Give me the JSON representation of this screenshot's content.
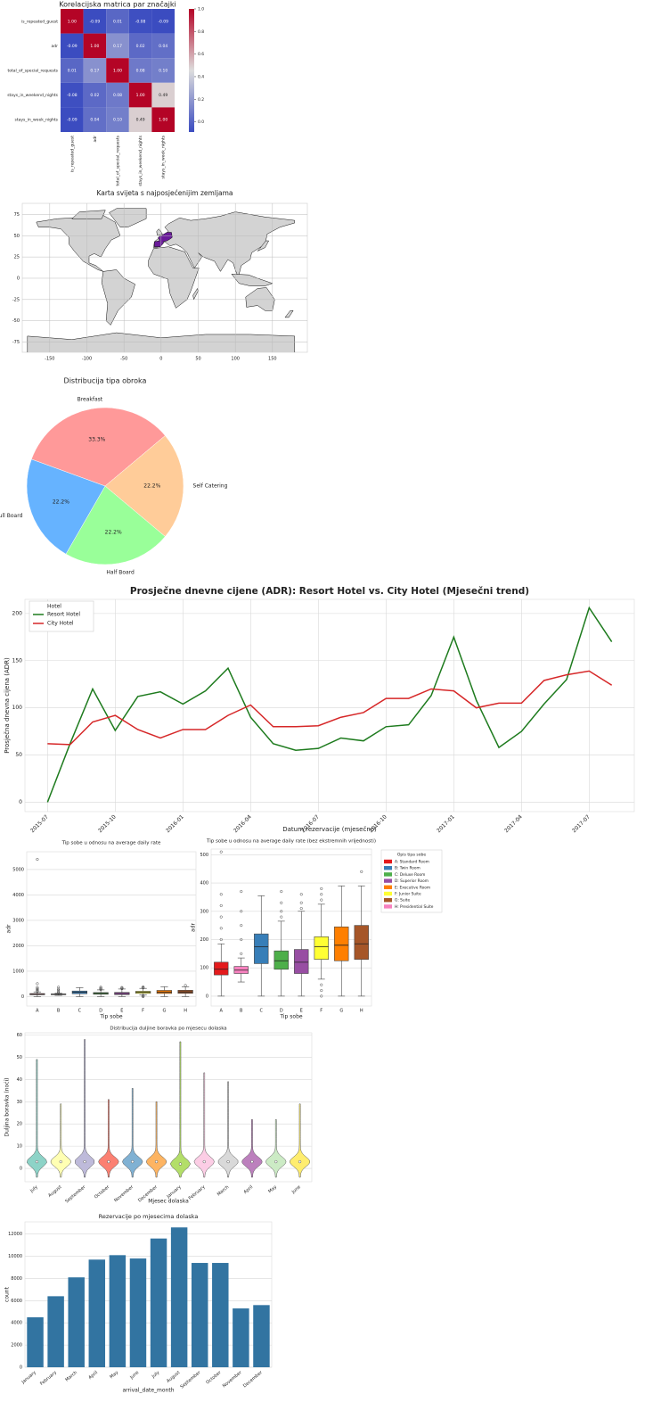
{
  "chart_data": [
    {
      "type": "heatmap",
      "title": "Korelacijska matrica par značajki",
      "x_labels": [
        "is_repeated_guest",
        "adr",
        "total_of_special_requests",
        "stays_in_weekend_nights",
        "stays_in_week_nights"
      ],
      "y_labels": [
        "is_repeated_guest",
        "adr",
        "total_of_special_requests",
        "stays_in_weekend_nights",
        "stays_in_week_nights"
      ],
      "values": [
        [
          1,
          -0.09,
          0.01,
          -0.08,
          -0.09
        ],
        [
          -0.09,
          1,
          0.17,
          0.02,
          0.04
        ],
        [
          0.01,
          0.17,
          1,
          0.08,
          0.1
        ],
        [
          -0.08,
          0.02,
          0.08,
          1,
          0.49
        ],
        [
          -0.09,
          0.04,
          0.1,
          0.49,
          1
        ]
      ],
      "value_labels": [
        [
          "1.00",
          "-0.09",
          "0.01",
          "-0.08",
          "-0.09"
        ],
        [
          "-0.09",
          "1.00",
          "0.17",
          "0.02",
          "0.04"
        ],
        [
          "0.01",
          "0.17",
          "1.00",
          "0.08",
          "0.10"
        ],
        [
          "-0.08",
          "0.02",
          "0.08",
          "1.00",
          "0.49"
        ],
        [
          "-0.09",
          "0.04",
          "0.10",
          "0.49",
          "1.00"
        ]
      ],
      "clim": [
        -0.09,
        1
      ],
      "cticks": [
        {
          "value": 0,
          "label": "0.0"
        },
        0.2,
        0.4,
        0.6,
        0.8,
        {
          "value": 1,
          "label": "1.0"
        }
      ]
    },
    {
      "type": "map",
      "title": "Karta svijeta s najposjećenijim zemljama",
      "xlim": [
        -187,
        197
      ],
      "ylim": [
        -87,
        88
      ],
      "xticks": [
        -150,
        -100,
        -50,
        0,
        50,
        100,
        150
      ],
      "yticks": [
        -75,
        -50,
        -25,
        0,
        25,
        50,
        75
      ],
      "grid": true
    },
    {
      "type": "pie",
      "title": "Distribucija tipa obroka",
      "categories": [
        "Breakfast",
        "Self Catering",
        "Half Board",
        "Full Board"
      ],
      "values": [
        33.3,
        22.2,
        22.2,
        22.2
      ],
      "value_labels": [
        "33.3%",
        "22.2%",
        "22.2%",
        "22.2%"
      ],
      "colors": [
        "#ff9999",
        "#ffcc99",
        "#99ff99",
        "#66b3ff"
      ]
    },
    {
      "type": "line",
      "title": "Prosječne dnevne cijene (ADR): Resort Hotel vs. City Hotel (Mjesečni trend)",
      "xlabel": "Datum rezervacije (mjesečno)",
      "ylabel": "Prosječna dnevna cijena (ADR)",
      "x": [
        "2015-07",
        "2015-08",
        "2015-09",
        "2015-10",
        "2015-11",
        "2015-12",
        "2016-01",
        "2016-02",
        "2016-03",
        "2016-04",
        "2016-05",
        "2016-06",
        "2016-07",
        "2016-08",
        "2016-09",
        "2016-10",
        "2016-11",
        "2016-12",
        "2017-01",
        "2017-02",
        "2017-03",
        "2017-04",
        "2017-05",
        "2017-06",
        "2017-07",
        "2017-08"
      ],
      "series": [
        {
          "name": "Resort Hotel",
          "color": "#1e7b1e",
          "values": [
            0,
            62,
            120,
            76,
            112,
            117,
            104,
            118,
            142,
            90,
            62,
            55,
            57,
            68,
            65,
            80,
            82,
            113,
            175,
            108,
            58,
            75,
            104,
            130,
            206,
            170
          ]
        },
        {
          "name": "City Hotel",
          "color": "#d62728",
          "values": [
            62,
            61,
            85,
            92,
            77,
            68,
            77,
            77,
            92,
            103,
            80,
            80,
            81,
            90,
            95,
            110,
            110,
            120,
            118,
            100,
            105,
            105,
            129,
            135,
            139,
            124
          ]
        }
      ],
      "legend_title": "Hotel",
      "legend": "upper left",
      "xlim": [
        "2015-06",
        "2017-09"
      ],
      "ylim": [
        -10,
        215
      ],
      "xticks": [
        "2015-07",
        "2015-10",
        "2016-01",
        "2016-04",
        "2016-07",
        "2016-10",
        "2017-01",
        "2017-04",
        "2017-07"
      ],
      "yticks": [
        0,
        50,
        100,
        150,
        200
      ],
      "grid": true
    },
    {
      "type": "box",
      "title": "Tip sobe u odnosu na average daily rate",
      "xlabel": "Tip sobe",
      "ylabel": "adr",
      "categories": [
        "A",
        "B",
        "C",
        "D",
        "E",
        "F",
        "G",
        "H"
      ],
      "boxes": [
        {
          "whislo": 0,
          "q1": 75,
          "med": 95,
          "q3": 120,
          "whishi": 185,
          "fliers": [
            200,
            240,
            280,
            320,
            360,
            510,
            5400
          ]
        },
        {
          "whislo": 50,
          "q1": 80,
          "med": 92,
          "q3": 105,
          "whishi": 135,
          "fliers": [
            150,
            200,
            250,
            300,
            370
          ]
        },
        {
          "whislo": 0,
          "q1": 115,
          "med": 175,
          "q3": 220,
          "whishi": 355,
          "fliers": []
        },
        {
          "whislo": 0,
          "q1": 95,
          "med": 125,
          "q3": 160,
          "whishi": 265,
          "fliers": [
            280,
            300,
            330,
            370
          ]
        },
        {
          "whislo": 0,
          "q1": 80,
          "med": 120,
          "q3": 165,
          "whishi": 300,
          "fliers": [
            310,
            330,
            360
          ]
        },
        {
          "whislo": 60,
          "q1": 130,
          "med": 175,
          "q3": 210,
          "whishi": 325,
          "fliers": [
            0,
            20,
            40,
            340,
            360,
            380
          ]
        },
        {
          "whislo": 0,
          "q1": 125,
          "med": 180,
          "q3": 245,
          "whishi": 390,
          "fliers": []
        },
        {
          "whislo": 0,
          "q1": 130,
          "med": 185,
          "q3": 250,
          "whishi": 390,
          "fliers": [
            440
          ]
        }
      ],
      "colors": [
        "#e41a1c",
        "#f781bf",
        "#377eb8",
        "#4daf4a",
        "#984ea3",
        "#ffff33",
        "#ff7f00",
        "#a65628"
      ],
      "ylim": [
        -370,
        5700
      ],
      "yticks": [
        0,
        1000,
        2000,
        3000,
        4000,
        5000
      ],
      "grid": true
    },
    {
      "type": "box",
      "title": "Tip sobe u odnosu na average daily rate (bez ekstremnih vrijednosti)",
      "xlabel": "Tip sobe",
      "ylabel": "adr",
      "categories": [
        "A",
        "B",
        "C",
        "D",
        "E",
        "F",
        "G",
        "H"
      ],
      "boxes": [
        {
          "whislo": 0,
          "q1": 75,
          "med": 95,
          "q3": 120,
          "whishi": 185,
          "fliers": [
            200,
            240,
            280,
            320,
            360,
            510
          ]
        },
        {
          "whislo": 50,
          "q1": 80,
          "med": 92,
          "q3": 105,
          "whishi": 135,
          "fliers": [
            150,
            200,
            250,
            300,
            370
          ]
        },
        {
          "whislo": 0,
          "q1": 115,
          "med": 175,
          "q3": 220,
          "whishi": 355,
          "fliers": []
        },
        {
          "whislo": 0,
          "q1": 95,
          "med": 125,
          "q3": 160,
          "whishi": 265,
          "fliers": [
            280,
            300,
            330,
            370
          ]
        },
        {
          "whislo": 0,
          "q1": 80,
          "med": 120,
          "q3": 165,
          "whishi": 300,
          "fliers": [
            310,
            330,
            360
          ]
        },
        {
          "whislo": 60,
          "q1": 130,
          "med": 175,
          "q3": 210,
          "whishi": 325,
          "fliers": [
            0,
            20,
            40,
            340,
            360,
            380
          ]
        },
        {
          "whislo": 0,
          "q1": 125,
          "med": 180,
          "q3": 245,
          "whishi": 390,
          "fliers": []
        },
        {
          "whislo": 0,
          "q1": 130,
          "med": 185,
          "q3": 250,
          "whishi": 390,
          "fliers": [
            440
          ]
        }
      ],
      "colors": [
        "#e41a1c",
        "#f781bf",
        "#377eb8",
        "#4daf4a",
        "#984ea3",
        "#ffff33",
        "#ff7f00",
        "#a65628"
      ],
      "legend_title": "Opis tipa sobe",
      "legend_entries": [
        {
          "name": "A: Standard Room",
          "color": "#e41a1c"
        },
        {
          "name": "B: Twin Room",
          "color": "#377eb8"
        },
        {
          "name": "C: Deluxe Room",
          "color": "#4daf4a"
        },
        {
          "name": "D: Superior Room",
          "color": "#984ea3"
        },
        {
          "name": "E: Executive Room",
          "color": "#ff7f00"
        },
        {
          "name": "F: Junior Suite",
          "color": "#ffff33"
        },
        {
          "name": "G: Suite",
          "color": "#a65628"
        },
        {
          "name": "H: Presidential Suite",
          "color": "#f781bf"
        }
      ],
      "ylim": [
        -35,
        520
      ],
      "yticks": [
        0,
        100,
        200,
        300,
        400,
        500
      ],
      "grid": true
    },
    {
      "type": "violin",
      "title": "Distribucija duljine boravka po mjesecu dolaska",
      "xlabel": "Mjesec dolaska",
      "ylabel": "Duljina boravka (noći)",
      "categories": [
        "July",
        "August",
        "September",
        "October",
        "November",
        "December",
        "January",
        "February",
        "March",
        "April",
        "May",
        "June"
      ],
      "medians": [
        3,
        3,
        3,
        3,
        3,
        3,
        2,
        3,
        3,
        3,
        3,
        3
      ],
      "max": [
        49,
        29,
        58,
        31,
        36,
        30,
        57,
        43,
        39,
        22,
        22,
        29
      ],
      "colors": [
        "#8dd3c7",
        "#ffffb3",
        "#bebada",
        "#fb8072",
        "#80b1d3",
        "#fdb462",
        "#b3de69",
        "#fccde5",
        "#d9d9d9",
        "#bc80bd",
        "#ccebc5",
        "#ffed6f"
      ],
      "ylim": [
        -6,
        61
      ],
      "yticks": [
        0,
        10,
        20,
        30,
        40,
        50,
        60
      ],
      "grid": true
    },
    {
      "type": "bar",
      "title": "Rezervacije po mjesecima dolaska",
      "xlabel": "arrival_date_month",
      "ylabel": "count",
      "categories": [
        "January",
        "February",
        "March",
        "April",
        "May",
        "June",
        "July",
        "August",
        "September",
        "October",
        "November",
        "December"
      ],
      "values": [
        4500,
        6400,
        8100,
        9700,
        10100,
        9800,
        11600,
        12600,
        9400,
        9400,
        5300,
        5600
      ],
      "color": "#3274a1",
      "ylim": [
        0,
        13100
      ],
      "yticks": [
        0,
        2000,
        4000,
        6000,
        8000,
        10000,
        12000
      ],
      "grid": true
    }
  ]
}
